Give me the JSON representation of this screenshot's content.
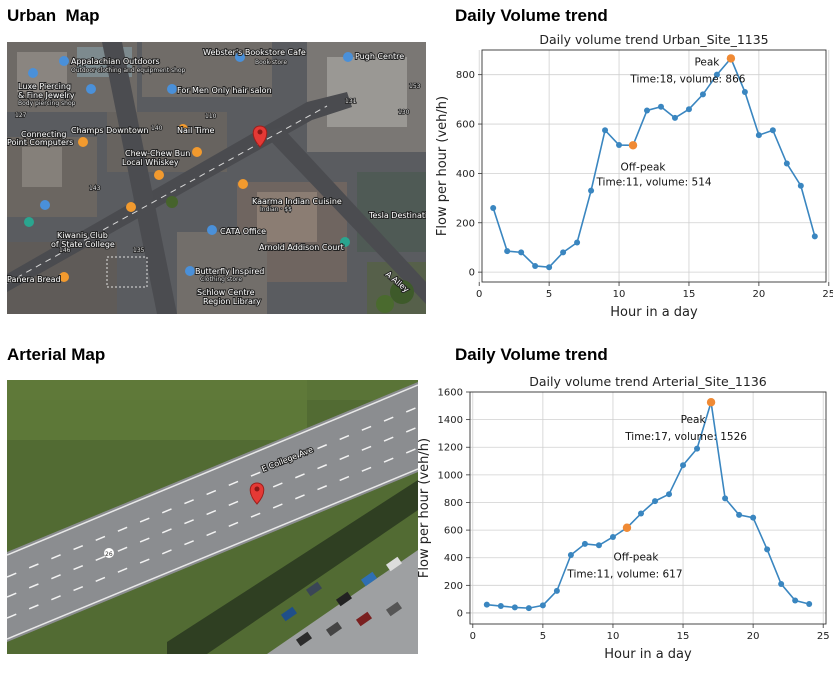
{
  "headings": {
    "urban_map": "Urban  Map",
    "urban_trend": "Daily Volume trend",
    "arterial_map": "Arterial Map",
    "arterial_trend": "Daily Volume trend"
  },
  "urban_map": {
    "labels": [
      "Webster's Bookstore Cafe",
      "Book store",
      "Pugh Centre",
      "Appalachian Outdoors",
      "Outdoor clothing and equipment shop",
      "For Men Only hair salon",
      "Luxe Piercing",
      "& Fine Jewelry",
      "Body piercing shop",
      "Champs Downtown",
      "Nail Time",
      "Connecting",
      "Point Computers",
      "Chew-Chew Bun",
      "Local Whiskey",
      "Kaarma Indian Cuisine",
      "Indian · $$",
      "Kiwanis Club",
      "of State College",
      "CATA Office",
      "Arnold Addison Court",
      "Tesla Destinati",
      "Panera Bread",
      "Butterfly Inspired",
      "Clothing store",
      "Schlow Centre",
      "Region Library",
      "A Alley",
      "127",
      "110",
      "140",
      "143",
      "146",
      "135",
      "153",
      "131",
      "130"
    ],
    "colors": {
      "pin": "#e53935",
      "poi_orange": "#f29a2e",
      "poi_blue": "#4a90d9",
      "poi_teal": "#2aa58f"
    }
  },
  "arterial_map": {
    "labels": [
      "E College Ave",
      "26"
    ],
    "colors": {
      "pin": "#e53935",
      "road": "#8b8d90",
      "grass": "#4d6b2e"
    }
  },
  "chart_data": [
    {
      "type": "line",
      "title": "Daily volume trend Urban_Site_1135",
      "xlabel": "Hour in a day",
      "ylabel": "Flow per hour (veh/h)",
      "x": [
        1,
        2,
        3,
        4,
        5,
        6,
        7,
        8,
        9,
        10,
        11,
        12,
        13,
        14,
        15,
        16,
        17,
        18,
        19,
        20,
        21,
        22,
        23,
        24
      ],
      "values": [
        260,
        85,
        80,
        25,
        20,
        80,
        120,
        330,
        575,
        515,
        514,
        655,
        670,
        625,
        660,
        720,
        800,
        866,
        730,
        555,
        575,
        440,
        350,
        145
      ],
      "xlim": [
        0.2,
        24.8
      ],
      "ylim": [
        -40,
        900
      ],
      "xticks": [
        0,
        5,
        10,
        15,
        20,
        25
      ],
      "yticks": [
        0,
        200,
        400,
        600,
        800
      ],
      "grid": true,
      "color": "#3a86c0",
      "highlight_color": "#f08a34",
      "peak": {
        "x": 18,
        "y": 866,
        "label": "Peak",
        "detail": "Time:18, volume: 866"
      },
      "offpeak": {
        "x": 11,
        "y": 514,
        "label": "Off-peak",
        "detail": "Time:11, volume: 514"
      }
    },
    {
      "type": "line",
      "title": "Daily volume trend Arterial_Site_1136",
      "xlabel": "Hour in a day",
      "ylabel": "Flow per hour (veh/h)",
      "x": [
        1,
        2,
        3,
        4,
        5,
        6,
        7,
        8,
        9,
        10,
        11,
        12,
        13,
        14,
        15,
        16,
        17,
        18,
        19,
        20,
        21,
        22,
        23,
        24
      ],
      "values": [
        60,
        50,
        40,
        35,
        55,
        160,
        420,
        500,
        490,
        550,
        617,
        720,
        810,
        860,
        1070,
        1190,
        1526,
        830,
        710,
        690,
        460,
        210,
        90,
        65
      ],
      "xlim": [
        -0.2,
        25.2
      ],
      "ylim": [
        -80,
        1600
      ],
      "xticks": [
        0,
        5,
        10,
        15,
        20,
        25
      ],
      "yticks": [
        0,
        200,
        400,
        600,
        800,
        1000,
        1200,
        1400,
        1600
      ],
      "grid": true,
      "color": "#3a86c0",
      "highlight_color": "#f08a34",
      "peak": {
        "x": 17,
        "y": 1526,
        "label": "Peak",
        "detail": "Time:17, volume: 1526"
      },
      "offpeak": {
        "x": 11,
        "y": 617,
        "label": "Off-peak",
        "detail": "Time:11, volume: 617"
      }
    }
  ]
}
